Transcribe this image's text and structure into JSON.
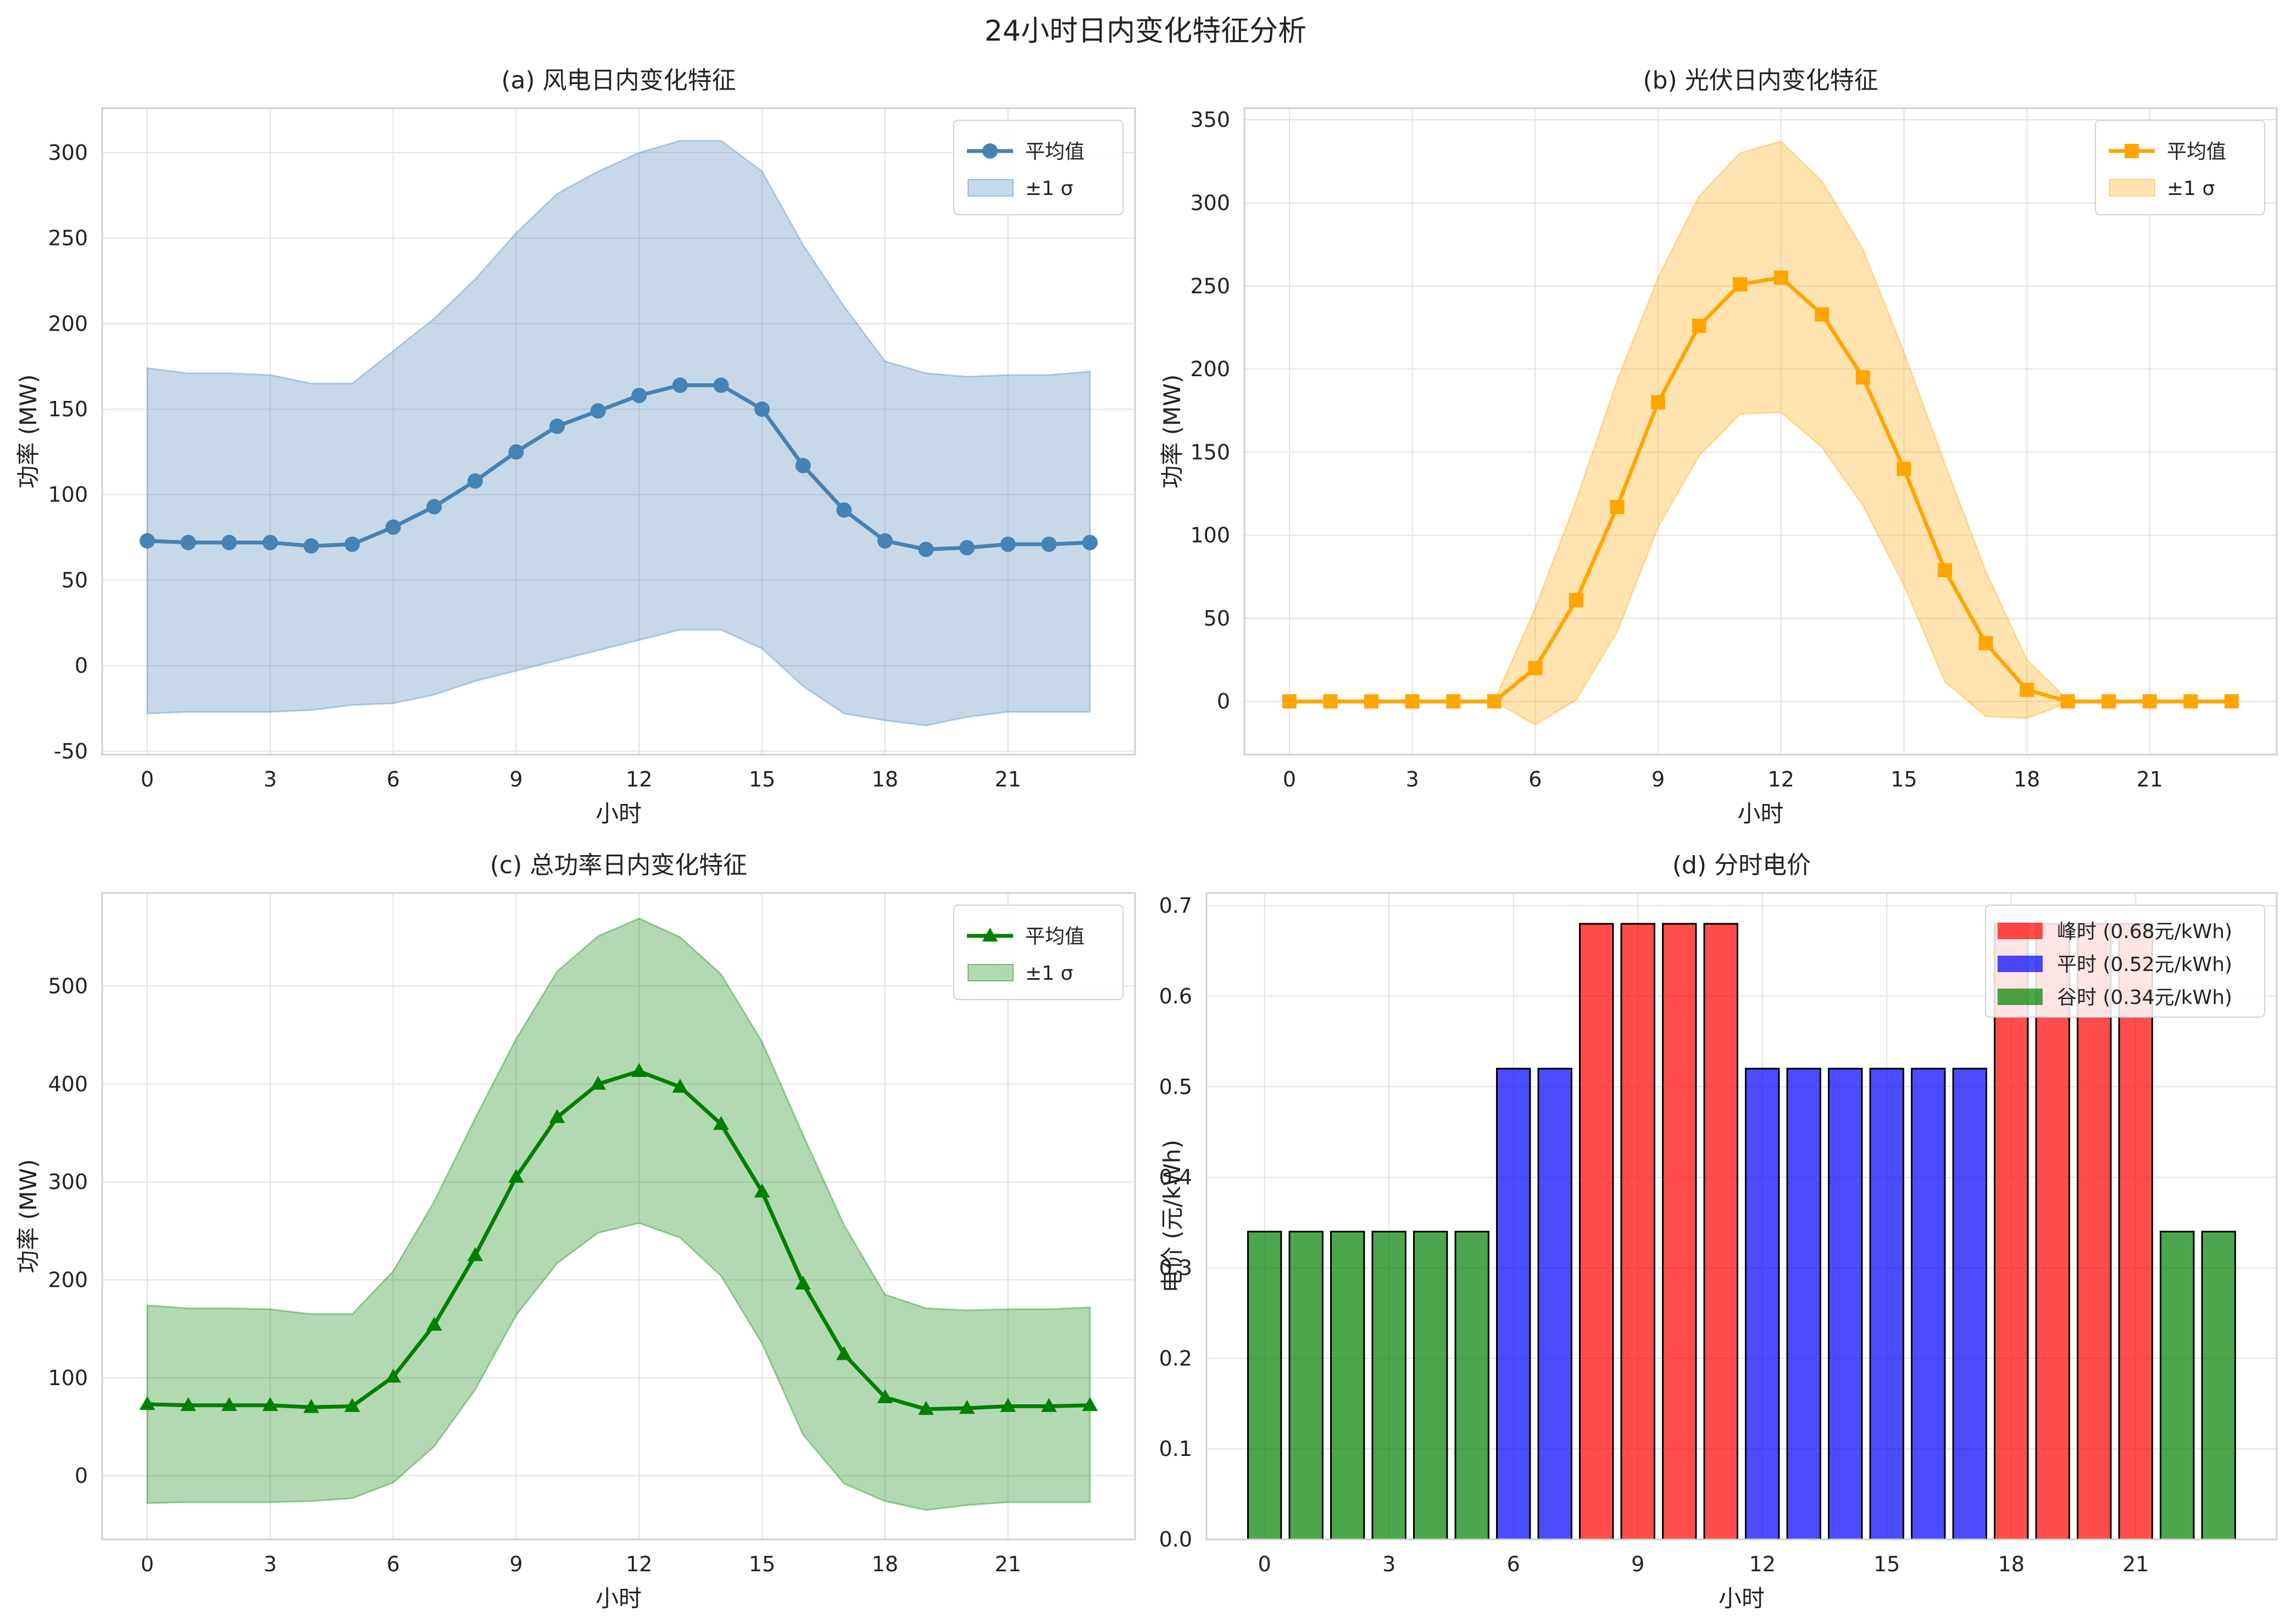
{
  "title": "24小时日内变化特征分析",
  "chart_data": [
    {
      "id": "wind",
      "type": "line",
      "title": "(a) 风电日内变化特征",
      "xlabel": "小时",
      "ylabel": "功率 (MW)",
      "xlim": [
        -1.1,
        24.1
      ],
      "ylim": [
        -52,
        326
      ],
      "xticks": [
        0,
        3,
        6,
        9,
        12,
        15,
        18,
        21
      ],
      "yticks": [
        -50,
        0,
        50,
        100,
        150,
        200,
        250,
        300
      ],
      "color": "#4682b4",
      "marker": "circle",
      "x": [
        0,
        1,
        2,
        3,
        4,
        5,
        6,
        7,
        8,
        9,
        10,
        11,
        12,
        13,
        14,
        15,
        16,
        17,
        18,
        19,
        20,
        21,
        22,
        23
      ],
      "mean": [
        73,
        72,
        72,
        72,
        70,
        71,
        81,
        93,
        108,
        125,
        140,
        149,
        158,
        164,
        164,
        150,
        117,
        91,
        73,
        68,
        69,
        71,
        71,
        72
      ],
      "upper": [
        174,
        171,
        171,
        170,
        165,
        165,
        184,
        203,
        226,
        253,
        276,
        289,
        300,
        307,
        307,
        289,
        246,
        210,
        178,
        171,
        169,
        170,
        170,
        172
      ],
      "lower": [
        -28,
        -27,
        -27,
        -27,
        -26,
        -23,
        -22,
        -17,
        -9,
        -3,
        3,
        9,
        15,
        21,
        21,
        10,
        -12,
        -28,
        -32,
        -35,
        -30,
        -27,
        -27,
        -27
      ],
      "legend": {
        "mean": "平均值",
        "band": "±1 σ"
      }
    },
    {
      "id": "pv",
      "type": "line",
      "title": "(b) 光伏日内变化特征",
      "xlabel": "小时",
      "ylabel": "功率 (MW)",
      "xlim": [
        -1.1,
        24.1
      ],
      "ylim": [
        -32,
        357
      ],
      "xticks": [
        0,
        3,
        6,
        9,
        12,
        15,
        18,
        21
      ],
      "yticks": [
        0,
        50,
        100,
        150,
        200,
        250,
        300,
        350
      ],
      "color": "#ffa500",
      "marker": "square",
      "x": [
        0,
        1,
        2,
        3,
        4,
        5,
        6,
        7,
        8,
        9,
        10,
        11,
        12,
        13,
        14,
        15,
        16,
        17,
        18,
        19,
        20,
        21,
        22,
        23
      ],
      "mean": [
        0,
        0,
        0,
        0,
        0,
        0,
        20,
        61,
        117,
        180,
        226,
        251,
        255,
        233,
        195,
        140,
        79,
        35,
        7,
        0,
        0,
        0,
        0,
        0
      ],
      "upper": [
        0,
        0,
        0,
        0,
        0,
        0,
        56,
        121,
        193,
        255,
        304,
        330,
        337,
        313,
        272,
        210,
        143,
        78,
        25,
        1,
        0,
        0,
        0,
        0
      ],
      "lower": [
        0,
        0,
        0,
        0,
        0,
        0,
        -14,
        1,
        42,
        105,
        148,
        173,
        174,
        153,
        118,
        70,
        12,
        -9,
        -10,
        -1,
        0,
        0,
        0,
        0
      ],
      "legend": {
        "mean": "平均值",
        "band": "±1 σ"
      }
    },
    {
      "id": "total",
      "type": "line",
      "title": "(c) 总功率日内变化特征",
      "xlabel": "小时",
      "ylabel": "功率 (MW)",
      "xlim": [
        -1.1,
        24.1
      ],
      "ylim": [
        -65,
        595
      ],
      "xticks": [
        0,
        3,
        6,
        9,
        12,
        15,
        18,
        21
      ],
      "yticks": [
        0,
        100,
        200,
        300,
        400,
        500
      ],
      "color": "#008000",
      "marker": "triangle",
      "x": [
        0,
        1,
        2,
        3,
        4,
        5,
        6,
        7,
        8,
        9,
        10,
        11,
        12,
        13,
        14,
        15,
        16,
        17,
        18,
        19,
        20,
        21,
        22,
        23
      ],
      "mean": [
        73,
        72,
        72,
        72,
        70,
        71,
        101,
        154,
        225,
        305,
        366,
        400,
        413,
        397,
        359,
        290,
        196,
        124,
        80,
        68,
        69,
        71,
        71,
        72
      ],
      "upper": [
        174,
        171,
        171,
        170,
        165,
        165,
        209,
        280,
        365,
        446,
        515,
        551,
        569,
        550,
        512,
        443,
        348,
        256,
        185,
        171,
        169,
        170,
        170,
        172
      ],
      "lower": [
        -28,
        -27,
        -27,
        -27,
        -26,
        -23,
        -7,
        30,
        88,
        164,
        217,
        248,
        258,
        243,
        204,
        135,
        42,
        -8,
        -26,
        -35,
        -30,
        -27,
        -27,
        -27
      ],
      "legend": {
        "mean": "平均值",
        "band": "±1 σ"
      }
    },
    {
      "id": "price",
      "type": "bar",
      "title": "(d) 分时电价",
      "xlabel": "小时",
      "ylabel": "电价 (元/kWh)",
      "xlim": [
        -1.4,
        24.4
      ],
      "ylim": [
        0,
        0.714
      ],
      "xticks": [
        0,
        3,
        6,
        9,
        12,
        15,
        18,
        21
      ],
      "yticks": [
        0.0,
        0.1,
        0.2,
        0.3,
        0.4,
        0.5,
        0.6,
        0.7
      ],
      "x": [
        0,
        1,
        2,
        3,
        4,
        5,
        6,
        7,
        8,
        9,
        10,
        11,
        12,
        13,
        14,
        15,
        16,
        17,
        18,
        19,
        20,
        21,
        22,
        23
      ],
      "values": [
        0.34,
        0.34,
        0.34,
        0.34,
        0.34,
        0.34,
        0.52,
        0.52,
        0.68,
        0.68,
        0.68,
        0.68,
        0.52,
        0.52,
        0.52,
        0.52,
        0.52,
        0.52,
        0.68,
        0.68,
        0.68,
        0.68,
        0.34,
        0.34
      ],
      "period_colors": {
        "0.68": "#ff0000",
        "0.52": "#0000ff",
        "0.34": "#008000"
      },
      "legend": [
        {
          "label": "峰时 (0.68元/kWh)",
          "color": "#ff0000"
        },
        {
          "label": "平时 (0.52元/kWh)",
          "color": "#0000ff"
        },
        {
          "label": "谷时 (0.34元/kWh)",
          "color": "#008000"
        }
      ]
    }
  ]
}
